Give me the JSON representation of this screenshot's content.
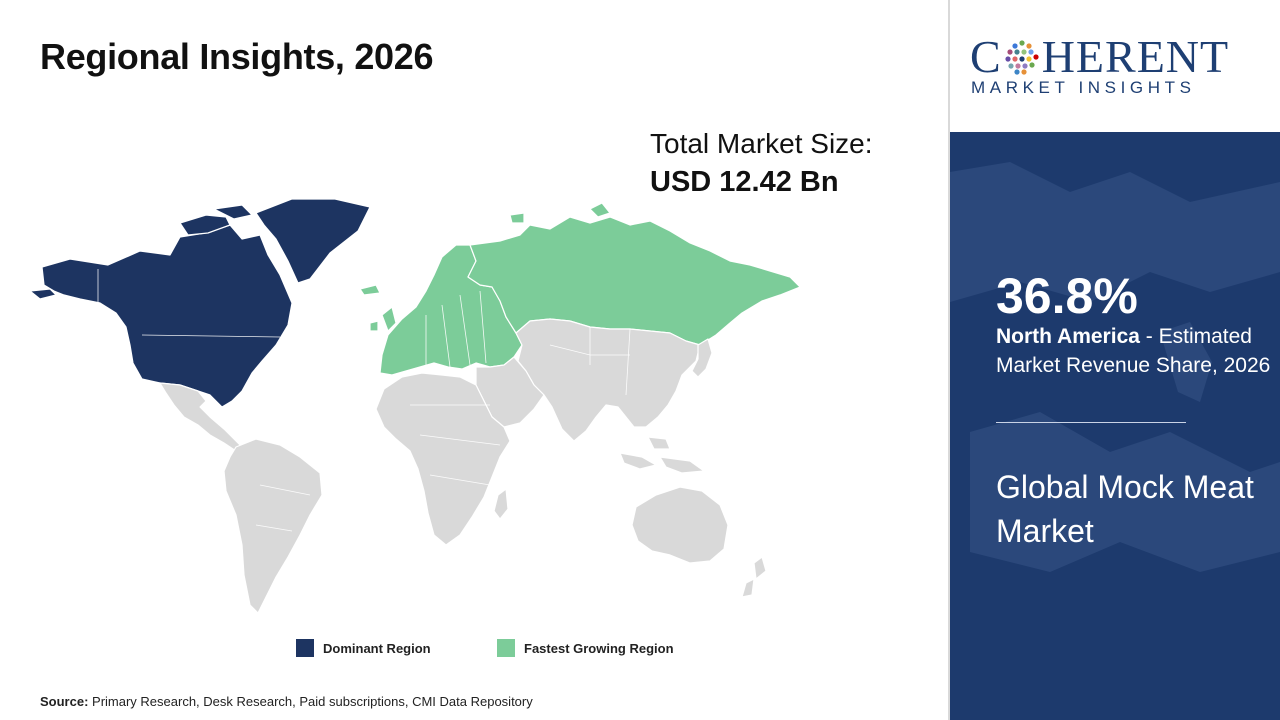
{
  "title": "Regional Insights, 2026",
  "market_size": {
    "label": "Total Market Size:",
    "value": "USD 12.42 Bn"
  },
  "legend": [
    {
      "label": "Dominant Region",
      "color": "#1d3461"
    },
    {
      "label": "Fastest Growing Region",
      "color": "#7ccc99"
    }
  ],
  "map": {
    "base_color": "#d9d9d9",
    "border_color": "#ffffff",
    "regions": [
      {
        "name": "North America",
        "role": "dominant"
      },
      {
        "name": "Europe",
        "role": "fastest-growing"
      },
      {
        "name": "Asia Pacific",
        "role": "other"
      },
      {
        "name": "Latin America",
        "role": "other"
      },
      {
        "name": "Middle East & Africa",
        "role": "other"
      }
    ]
  },
  "source": {
    "label": "Source:",
    "text": "Primary Research, Desk Research, Paid subscriptions, CMI Data Repository"
  },
  "logo": {
    "main_left": "C",
    "main_right": "HERENT",
    "sub": "MARKET INSIGHTS"
  },
  "highlight": {
    "percent": "36.8%",
    "region": "North America",
    "desc": " - Estimated Market Revenue Share, 2026"
  },
  "market_name": "Global Mock Meat Market",
  "colors": {
    "panel_bg": "#1d3a6d",
    "brand": "#1e3f73"
  }
}
